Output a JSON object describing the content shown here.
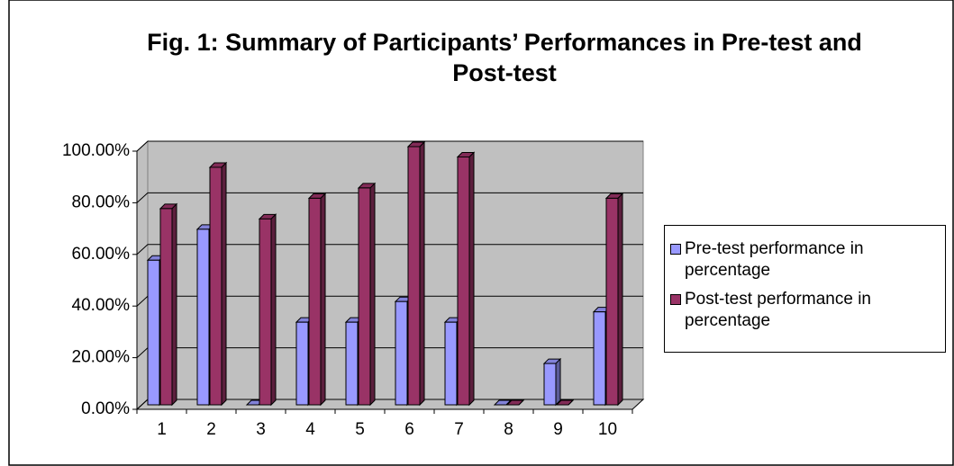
{
  "chart_data": {
    "type": "bar",
    "title": "Fig. 1: Summary of Participants’ Performances in Pre-test and Post-test",
    "categories": [
      "1",
      "2",
      "3",
      "4",
      "5",
      "6",
      "7",
      "8",
      "9",
      "10"
    ],
    "series": [
      {
        "name": "Pre-test performance in percentage",
        "color": "#9999ff",
        "values": [
          56,
          68,
          0,
          32,
          32,
          40,
          32,
          0,
          16,
          36
        ]
      },
      {
        "name": "Post-test performance in percentage",
        "color": "#993366",
        "values": [
          76,
          92,
          72,
          80,
          84,
          100,
          96,
          0,
          0,
          80
        ]
      }
    ],
    "ylim": [
      0,
      100
    ],
    "yticks": [
      {
        "value": 0,
        "label": "0.00%"
      },
      {
        "value": 20,
        "label": "20.00%"
      },
      {
        "value": 40,
        "label": "40.00%"
      },
      {
        "value": 60,
        "label": "60.00%"
      },
      {
        "value": 80,
        "label": "80.00%"
      },
      {
        "value": 100,
        "label": "100.00%"
      }
    ],
    "grid": true,
    "legend": "right"
  }
}
